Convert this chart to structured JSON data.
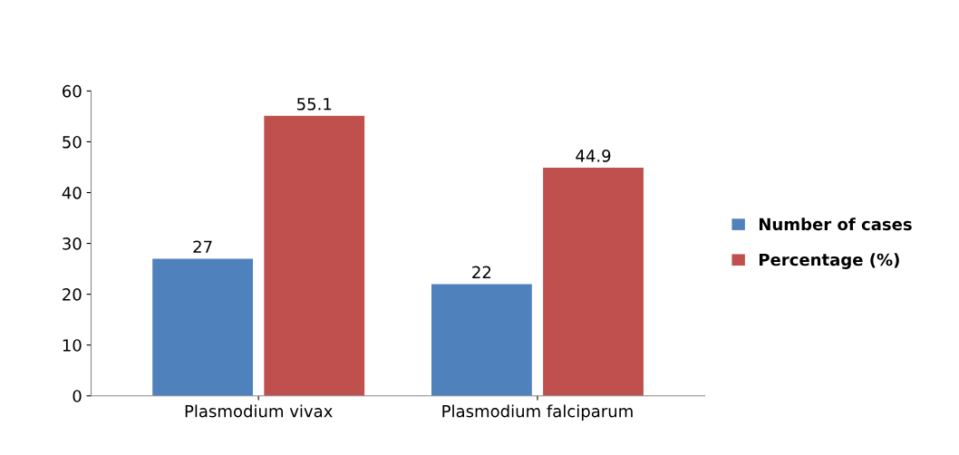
{
  "chart_data": {
    "type": "bar",
    "categories": [
      "Plasmodium vivax",
      "Plasmodium falciparum"
    ],
    "series": [
      {
        "name": "Number of cases",
        "color": "#4f81bd",
        "values": [
          27,
          22
        ]
      },
      {
        "name": "Percentage (%)",
        "color": "#c0504d",
        "values": [
          55.1,
          44.9
        ]
      }
    ],
    "ylim": [
      0,
      60
    ],
    "yticks": [
      0,
      10,
      20,
      30,
      40,
      50,
      60
    ],
    "grid": false,
    "legend": "right",
    "data_labels": true
  }
}
